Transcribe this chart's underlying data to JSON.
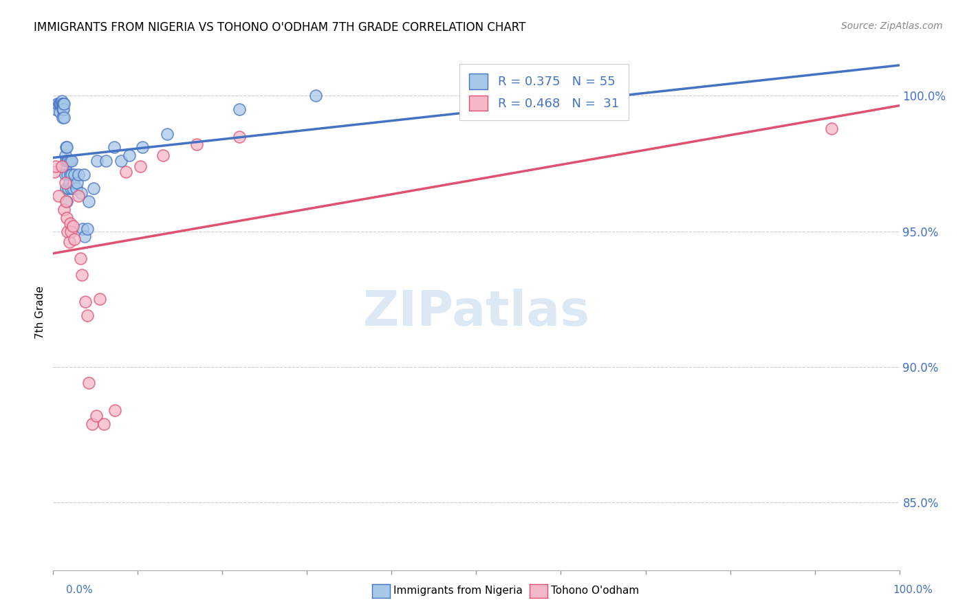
{
  "title": "IMMIGRANTS FROM NIGERIA VS TOHONO O'ODHAM 7TH GRADE CORRELATION CHART",
  "source": "Source: ZipAtlas.com",
  "ylabel": "7th Grade",
  "xlim": [
    0.0,
    1.0
  ],
  "ylim": [
    0.825,
    1.015
  ],
  "yticks": [
    0.85,
    0.9,
    0.95,
    1.0
  ],
  "ytick_labels": [
    "85.0%",
    "90.0%",
    "95.0%",
    "100.0%"
  ],
  "color_nigeria": "#a8c8e8",
  "color_tohono": "#f4b8c8",
  "trendline_nigeria": "#4472c4",
  "trendline_tohono": "#e05070",
  "nigeria_x": [
    0.003,
    0.005,
    0.007,
    0.008,
    0.008,
    0.009,
    0.01,
    0.01,
    0.011,
    0.011,
    0.011,
    0.012,
    0.012,
    0.013,
    0.013,
    0.014,
    0.014,
    0.014,
    0.015,
    0.015,
    0.015,
    0.016,
    0.016,
    0.017,
    0.017,
    0.018,
    0.018,
    0.019,
    0.02,
    0.02,
    0.021,
    0.022,
    0.022,
    0.023,
    0.024,
    0.025,
    0.027,
    0.028,
    0.03,
    0.033,
    0.035,
    0.036,
    0.037,
    0.04,
    0.042,
    0.048,
    0.052,
    0.062,
    0.072,
    0.08,
    0.09,
    0.105,
    0.135,
    0.22,
    0.31
  ],
  "nigeria_y": [
    0.995,
    0.997,
    0.997,
    0.997,
    0.994,
    0.997,
    0.997,
    0.998,
    0.997,
    0.995,
    0.992,
    0.997,
    0.995,
    0.997,
    0.992,
    0.978,
    0.974,
    0.971,
    0.981,
    0.976,
    0.966,
    0.961,
    0.981,
    0.976,
    0.971,
    0.976,
    0.966,
    0.968,
    0.976,
    0.971,
    0.966,
    0.976,
    0.971,
    0.966,
    0.968,
    0.971,
    0.966,
    0.968,
    0.971,
    0.964,
    0.951,
    0.971,
    0.948,
    0.951,
    0.961,
    0.966,
    0.976,
    0.976,
    0.981,
    0.976,
    0.978,
    0.981,
    0.986,
    0.995,
    1.0
  ],
  "tohono_x": [
    0.001,
    0.003,
    0.006,
    0.01,
    0.013,
    0.014,
    0.015,
    0.016,
    0.017,
    0.019,
    0.02,
    0.021,
    0.023,
    0.025,
    0.03,
    0.032,
    0.034,
    0.038,
    0.04,
    0.042,
    0.046,
    0.051,
    0.055,
    0.06,
    0.073,
    0.086,
    0.103,
    0.13,
    0.17,
    0.22,
    0.92
  ],
  "tohono_y": [
    0.972,
    0.974,
    0.963,
    0.974,
    0.958,
    0.968,
    0.961,
    0.955,
    0.95,
    0.946,
    0.953,
    0.95,
    0.952,
    0.947,
    0.963,
    0.94,
    0.934,
    0.924,
    0.919,
    0.894,
    0.879,
    0.882,
    0.925,
    0.879,
    0.884,
    0.972,
    0.974,
    0.978,
    0.982,
    0.985,
    0.988
  ],
  "background_color": "#ffffff",
  "grid_color": "#cccccc",
  "watermark_text": "ZIPatlas",
  "watermark_color": "#dce9f5",
  "legend_label1": "R = 0.375   N = 55",
  "legend_label2": "R = 0.468   N =  31",
  "bottom_label1": "Immigrants from Nigeria",
  "bottom_label2": "Tohono O'odham"
}
